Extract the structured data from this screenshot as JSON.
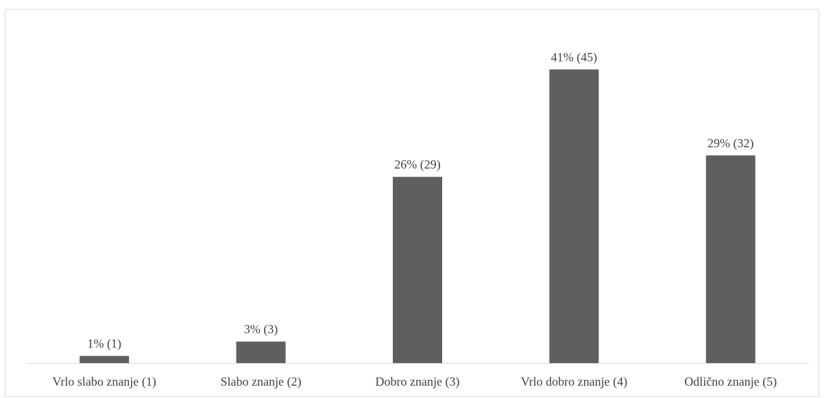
{
  "chart_data": {
    "type": "bar",
    "categories": [
      "Vrlo slabo znanje (1)",
      "Slabo znanje (2)",
      "Dobro znanje (3)",
      "Vrlo dobro znanje (4)",
      "Odlično znanje (5)"
    ],
    "values": [
      1,
      3,
      26,
      41,
      29
    ],
    "counts": [
      1,
      3,
      29,
      45,
      32
    ],
    "data_labels": [
      "1% (1)",
      "3% (3)",
      "26% (29)",
      "41% (45)",
      "29% (32)"
    ],
    "unit": "%",
    "ylim": [
      0,
      44
    ],
    "grid": false,
    "legend": "none",
    "bar_color": "#5f5f5f",
    "axis_color": "#d9d9d9",
    "text_color": "#404040"
  }
}
